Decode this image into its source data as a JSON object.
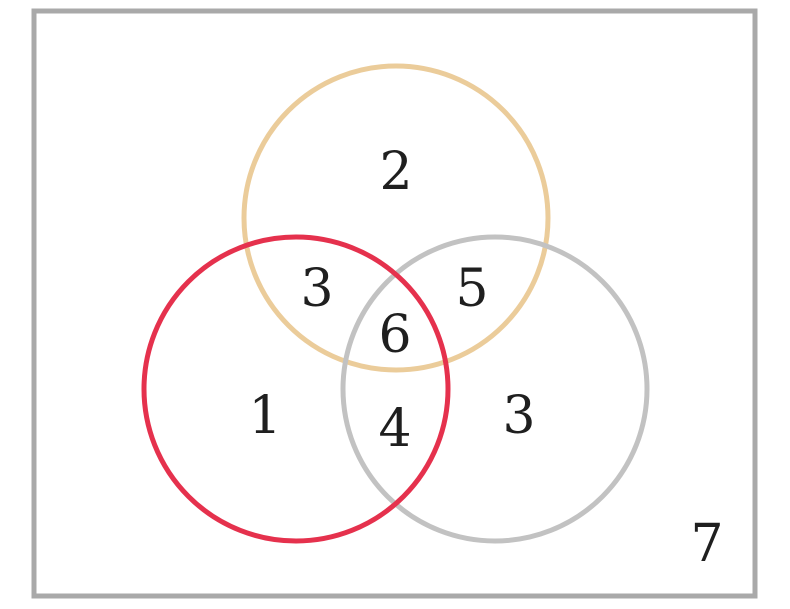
{
  "diagram": {
    "type": "venn-3-set",
    "colors": {
      "frame": "#a9a9a9",
      "set_top": "#ebcc9a",
      "set_left": "#e5314d",
      "set_right": "#c2c2c2",
      "text": "#1f1f1f"
    },
    "regions": {
      "top_only": "2",
      "left_only": "1",
      "right_only": "3",
      "top_left": "3",
      "top_right": "5",
      "left_right": "4",
      "all_three": "6",
      "outside": "7"
    }
  }
}
